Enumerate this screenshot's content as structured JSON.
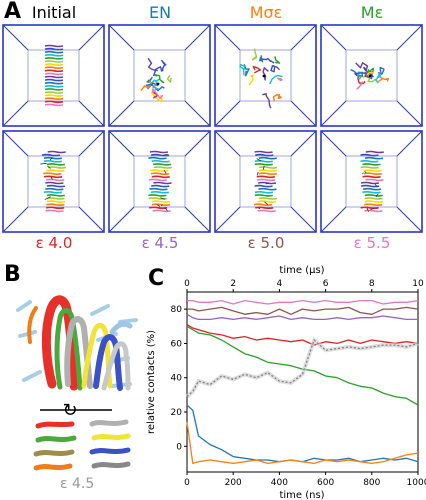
{
  "panel_a": {
    "letter": "A",
    "columns": [
      {
        "title": "Initial",
        "color": "#000000"
      },
      {
        "title": "EN",
        "color": "#1f77b4"
      },
      {
        "title": "Mσε",
        "color": "#ff7f0e"
      },
      {
        "title": "Mε",
        "color": "#2ca02c"
      }
    ],
    "eps_labels": [
      {
        "text": "ε 4.0",
        "color": "#d62728"
      },
      {
        "text": "ε 4.5",
        "color": "#9467bd"
      },
      {
        "text": "ε 5.0",
        "color": "#8c564b"
      },
      {
        "text": "ε 5.5",
        "color": "#e377c2"
      }
    ]
  },
  "panel_b": {
    "letter": "B",
    "sublabel": "ε 4.5",
    "rotation_symbol": "↻"
  },
  "panel_c": {
    "letter": "C",
    "chart_data": {
      "type": "line",
      "xlabel": "time (ns)",
      "x2label": "time (μs)",
      "ylabel": "relative contacts (%)",
      "xlim": [
        0,
        1000
      ],
      "ylim": [
        -15,
        90
      ],
      "x_ticks": [
        0,
        200,
        400,
        600,
        800,
        1000
      ],
      "x2_ticks": [
        0,
        2,
        4,
        6,
        8,
        10
      ],
      "y_ticks": [
        0,
        20,
        40,
        60,
        80
      ],
      "x": [
        0,
        25,
        50,
        100,
        150,
        200,
        250,
        300,
        350,
        400,
        450,
        500,
        550,
        600,
        650,
        700,
        750,
        800,
        850,
        900,
        950,
        1000
      ],
      "series": [
        {
          "color": "#e377c2",
          "values": [
            85,
            85,
            84,
            84,
            85,
            83,
            85,
            84,
            83,
            84,
            84,
            85,
            84,
            85,
            84,
            84,
            85,
            85,
            83,
            84,
            84,
            85
          ]
        },
        {
          "color": "#8c564b",
          "values": [
            80,
            80,
            79,
            80,
            81,
            79,
            77,
            78,
            77,
            80,
            77,
            80,
            79,
            80,
            80,
            81,
            78,
            77,
            80,
            80,
            81,
            80
          ]
        },
        {
          "color": "#9467bd",
          "values": [
            77,
            75,
            74,
            74,
            75,
            74,
            75,
            74,
            75,
            76,
            74,
            75,
            74,
            74,
            75,
            74,
            75,
            75,
            76,
            75,
            74,
            74
          ]
        },
        {
          "color": "#d62728",
          "values": [
            71,
            69,
            68,
            66,
            65,
            63,
            64,
            62,
            63,
            62,
            61,
            62,
            59,
            61,
            60,
            62,
            60,
            62,
            61,
            60,
            61,
            60
          ]
        },
        {
          "color": "#2ca02c",
          "values": [
            70,
            68,
            66,
            65,
            62,
            58,
            54,
            52,
            49,
            48,
            47,
            45,
            44,
            41,
            40,
            37,
            35,
            34,
            31,
            29,
            28,
            24
          ]
        },
        {
          "color": "#7f7f7f",
          "dashed": true,
          "values": [
            29,
            32,
            38,
            36,
            41,
            39,
            42,
            40,
            43,
            38,
            37,
            42,
            62,
            56,
            57,
            58,
            57,
            58,
            59,
            59,
            58,
            60
          ]
        },
        {
          "color": "#1f77b4",
          "values": [
            24,
            21,
            6,
            1,
            -2,
            -6,
            -7,
            -8,
            -8,
            -9,
            -8,
            -9,
            -7,
            -8,
            -8,
            -7,
            -9,
            -8,
            -7,
            -8,
            -7,
            -9
          ]
        },
        {
          "color": "#ff7f0e",
          "values": [
            14,
            -10,
            -9,
            -8,
            -9,
            -10,
            -9,
            -8,
            -10,
            -9,
            -8,
            -9,
            -10,
            -8,
            -9,
            -8,
            -9,
            -10,
            -9,
            -7,
            -5,
            -4
          ]
        }
      ]
    }
  }
}
